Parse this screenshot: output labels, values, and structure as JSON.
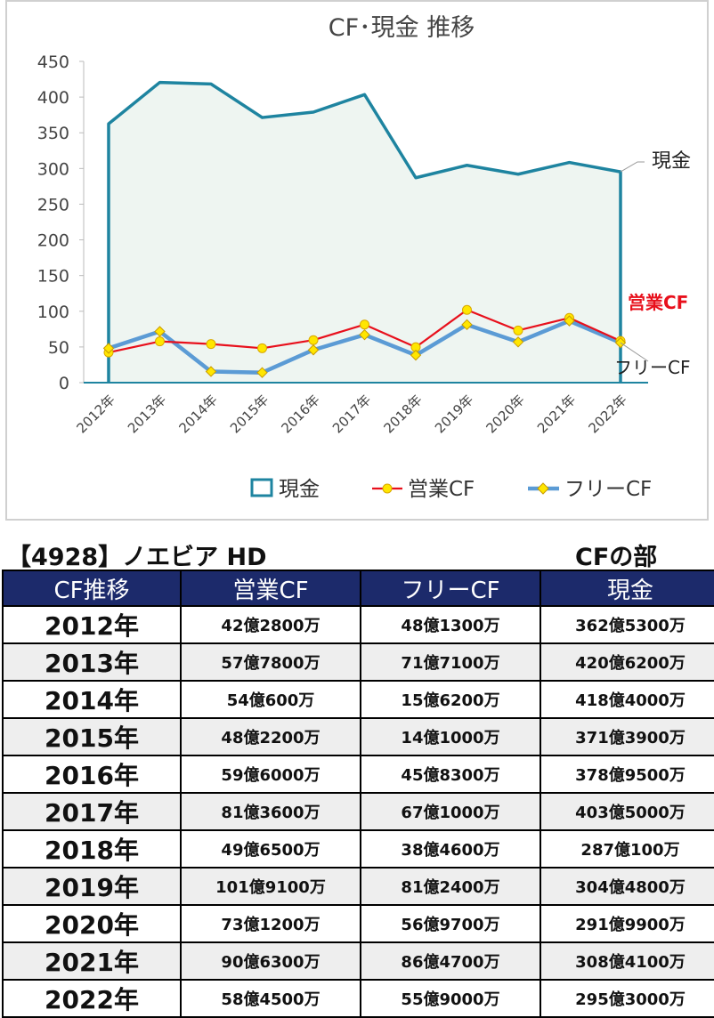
{
  "chart_data": {
    "type": "line",
    "title": "CF･現金 推移",
    "categories": [
      "2012年",
      "2013年",
      "2014年",
      "2015年",
      "2016年",
      "2017年",
      "2018年",
      "2019年",
      "2020年",
      "2021年",
      "2022年"
    ],
    "ylim": [
      0,
      450
    ],
    "yticks": [
      0,
      50,
      100,
      150,
      200,
      250,
      300,
      350,
      400,
      450
    ],
    "grid": false,
    "legend_position": "bottom",
    "series": [
      {
        "name": "現金",
        "values": [
          362.53,
          420.62,
          418.4,
          371.39,
          378.95,
          403.5,
          287.01,
          304.48,
          291.99,
          308.41,
          295.3
        ],
        "color": "#1e84a0",
        "fill": "#eef5f1"
      },
      {
        "name": "営業CF",
        "values": [
          42.28,
          57.78,
          54.06,
          48.22,
          59.6,
          81.36,
          49.65,
          101.91,
          73.12,
          90.63,
          58.45
        ],
        "color": "#e8101c"
      },
      {
        "name": "フリーCF",
        "values": [
          48.13,
          71.71,
          15.62,
          14.1,
          45.83,
          67.1,
          38.46,
          81.24,
          56.97,
          86.47,
          55.9
        ],
        "color": "#5b9bd5"
      }
    ],
    "annotations": [
      {
        "text": "現金",
        "color": "#222222"
      },
      {
        "text": "営業CF",
        "color": "#e8101c"
      },
      {
        "text": "フリーCF",
        "color": "#222222"
      }
    ]
  },
  "company_title": "【4928】ノエビア HD",
  "section_title": "CFの部",
  "table": {
    "headers": [
      "CF推移",
      "営業CF",
      "フリーCF",
      "現金"
    ],
    "rows": [
      [
        "2012年",
        "42億2800万",
        "48億1300万",
        "362億5300万"
      ],
      [
        "2013年",
        "57億7800万",
        "71億7100万",
        "420億6200万"
      ],
      [
        "2014年",
        "54億600万",
        "15億6200万",
        "418億4000万"
      ],
      [
        "2015年",
        "48億2200万",
        "14億1000万",
        "371億3900万"
      ],
      [
        "2016年",
        "59億6000万",
        "45億8300万",
        "378億9500万"
      ],
      [
        "2017年",
        "81億3600万",
        "67億1000万",
        "403億5000万"
      ],
      [
        "2018年",
        "49億6500万",
        "38億4600万",
        "287億100万"
      ],
      [
        "2019年",
        "101億9100万",
        "81億2400万",
        "304億4800万"
      ],
      [
        "2020年",
        "73億1200万",
        "56億9700万",
        "291億9900万"
      ],
      [
        "2021年",
        "90億6300万",
        "86億4700万",
        "308億4100万"
      ],
      [
        "2022年",
        "58億4500万",
        "55億9000万",
        "295億3000万"
      ]
    ]
  }
}
